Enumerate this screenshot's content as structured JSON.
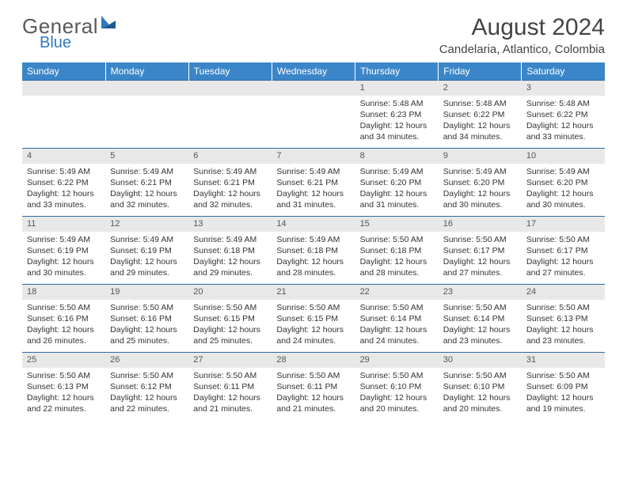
{
  "logo": {
    "general": "General",
    "blue": "Blue"
  },
  "title": "August 2024",
  "location": "Candelaria, Atlantico, Colombia",
  "colors": {
    "header_bg": "#3b86c8",
    "header_text": "#ffffff",
    "daynum_bg": "#e8e8e8",
    "border": "#2d6aa3",
    "logo_blue": "#2d78c0",
    "logo_gray": "#5a5a5a"
  },
  "day_headers": [
    "Sunday",
    "Monday",
    "Tuesday",
    "Wednesday",
    "Thursday",
    "Friday",
    "Saturday"
  ],
  "weeks": [
    [
      {
        "n": "",
        "lines": []
      },
      {
        "n": "",
        "lines": []
      },
      {
        "n": "",
        "lines": []
      },
      {
        "n": "",
        "lines": []
      },
      {
        "n": "1",
        "lines": [
          "Sunrise: 5:48 AM",
          "Sunset: 6:23 PM",
          "Daylight: 12 hours",
          "and 34 minutes."
        ]
      },
      {
        "n": "2",
        "lines": [
          "Sunrise: 5:48 AM",
          "Sunset: 6:22 PM",
          "Daylight: 12 hours",
          "and 34 minutes."
        ]
      },
      {
        "n": "3",
        "lines": [
          "Sunrise: 5:48 AM",
          "Sunset: 6:22 PM",
          "Daylight: 12 hours",
          "and 33 minutes."
        ]
      }
    ],
    [
      {
        "n": "4",
        "lines": [
          "Sunrise: 5:49 AM",
          "Sunset: 6:22 PM",
          "Daylight: 12 hours",
          "and 33 minutes."
        ]
      },
      {
        "n": "5",
        "lines": [
          "Sunrise: 5:49 AM",
          "Sunset: 6:21 PM",
          "Daylight: 12 hours",
          "and 32 minutes."
        ]
      },
      {
        "n": "6",
        "lines": [
          "Sunrise: 5:49 AM",
          "Sunset: 6:21 PM",
          "Daylight: 12 hours",
          "and 32 minutes."
        ]
      },
      {
        "n": "7",
        "lines": [
          "Sunrise: 5:49 AM",
          "Sunset: 6:21 PM",
          "Daylight: 12 hours",
          "and 31 minutes."
        ]
      },
      {
        "n": "8",
        "lines": [
          "Sunrise: 5:49 AM",
          "Sunset: 6:20 PM",
          "Daylight: 12 hours",
          "and 31 minutes."
        ]
      },
      {
        "n": "9",
        "lines": [
          "Sunrise: 5:49 AM",
          "Sunset: 6:20 PM",
          "Daylight: 12 hours",
          "and 30 minutes."
        ]
      },
      {
        "n": "10",
        "lines": [
          "Sunrise: 5:49 AM",
          "Sunset: 6:20 PM",
          "Daylight: 12 hours",
          "and 30 minutes."
        ]
      }
    ],
    [
      {
        "n": "11",
        "lines": [
          "Sunrise: 5:49 AM",
          "Sunset: 6:19 PM",
          "Daylight: 12 hours",
          "and 30 minutes."
        ]
      },
      {
        "n": "12",
        "lines": [
          "Sunrise: 5:49 AM",
          "Sunset: 6:19 PM",
          "Daylight: 12 hours",
          "and 29 minutes."
        ]
      },
      {
        "n": "13",
        "lines": [
          "Sunrise: 5:49 AM",
          "Sunset: 6:18 PM",
          "Daylight: 12 hours",
          "and 29 minutes."
        ]
      },
      {
        "n": "14",
        "lines": [
          "Sunrise: 5:49 AM",
          "Sunset: 6:18 PM",
          "Daylight: 12 hours",
          "and 28 minutes."
        ]
      },
      {
        "n": "15",
        "lines": [
          "Sunrise: 5:50 AM",
          "Sunset: 6:18 PM",
          "Daylight: 12 hours",
          "and 28 minutes."
        ]
      },
      {
        "n": "16",
        "lines": [
          "Sunrise: 5:50 AM",
          "Sunset: 6:17 PM",
          "Daylight: 12 hours",
          "and 27 minutes."
        ]
      },
      {
        "n": "17",
        "lines": [
          "Sunrise: 5:50 AM",
          "Sunset: 6:17 PM",
          "Daylight: 12 hours",
          "and 27 minutes."
        ]
      }
    ],
    [
      {
        "n": "18",
        "lines": [
          "Sunrise: 5:50 AM",
          "Sunset: 6:16 PM",
          "Daylight: 12 hours",
          "and 26 minutes."
        ]
      },
      {
        "n": "19",
        "lines": [
          "Sunrise: 5:50 AM",
          "Sunset: 6:16 PM",
          "Daylight: 12 hours",
          "and 25 minutes."
        ]
      },
      {
        "n": "20",
        "lines": [
          "Sunrise: 5:50 AM",
          "Sunset: 6:15 PM",
          "Daylight: 12 hours",
          "and 25 minutes."
        ]
      },
      {
        "n": "21",
        "lines": [
          "Sunrise: 5:50 AM",
          "Sunset: 6:15 PM",
          "Daylight: 12 hours",
          "and 24 minutes."
        ]
      },
      {
        "n": "22",
        "lines": [
          "Sunrise: 5:50 AM",
          "Sunset: 6:14 PM",
          "Daylight: 12 hours",
          "and 24 minutes."
        ]
      },
      {
        "n": "23",
        "lines": [
          "Sunrise: 5:50 AM",
          "Sunset: 6:14 PM",
          "Daylight: 12 hours",
          "and 23 minutes."
        ]
      },
      {
        "n": "24",
        "lines": [
          "Sunrise: 5:50 AM",
          "Sunset: 6:13 PM",
          "Daylight: 12 hours",
          "and 23 minutes."
        ]
      }
    ],
    [
      {
        "n": "25",
        "lines": [
          "Sunrise: 5:50 AM",
          "Sunset: 6:13 PM",
          "Daylight: 12 hours",
          "and 22 minutes."
        ]
      },
      {
        "n": "26",
        "lines": [
          "Sunrise: 5:50 AM",
          "Sunset: 6:12 PM",
          "Daylight: 12 hours",
          "and 22 minutes."
        ]
      },
      {
        "n": "27",
        "lines": [
          "Sunrise: 5:50 AM",
          "Sunset: 6:11 PM",
          "Daylight: 12 hours",
          "and 21 minutes."
        ]
      },
      {
        "n": "28",
        "lines": [
          "Sunrise: 5:50 AM",
          "Sunset: 6:11 PM",
          "Daylight: 12 hours",
          "and 21 minutes."
        ]
      },
      {
        "n": "29",
        "lines": [
          "Sunrise: 5:50 AM",
          "Sunset: 6:10 PM",
          "Daylight: 12 hours",
          "and 20 minutes."
        ]
      },
      {
        "n": "30",
        "lines": [
          "Sunrise: 5:50 AM",
          "Sunset: 6:10 PM",
          "Daylight: 12 hours",
          "and 20 minutes."
        ]
      },
      {
        "n": "31",
        "lines": [
          "Sunrise: 5:50 AM",
          "Sunset: 6:09 PM",
          "Daylight: 12 hours",
          "and 19 minutes."
        ]
      }
    ]
  ]
}
